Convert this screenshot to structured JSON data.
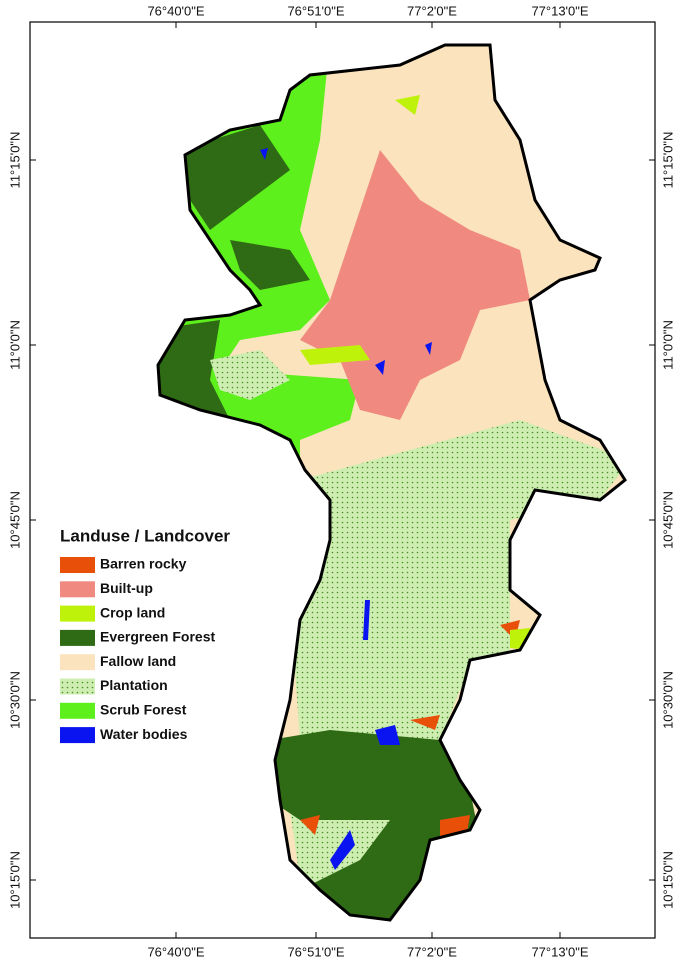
{
  "map": {
    "longitude_labels_top": [
      "76°40'0\"E",
      "76°51'0\"E",
      "77°2'0\"E",
      "77°13'0\"E"
    ],
    "longitude_labels_bottom": [
      "76°40'0\"E",
      "76°51'0\"E",
      "77°2'0\"E",
      "77°13'0\"E"
    ],
    "latitude_labels_left": [
      "11°15'0\"N",
      "11°0'0\"N",
      "10°45'0\"N",
      "10°30'0\"N",
      "10°15'0\"N"
    ],
    "latitude_labels_right": [
      "11°15'0\"N",
      "11°0'0\"N",
      "10°45'0\"N",
      "10°30'0\"N",
      "10°15'0\"N"
    ],
    "legend": {
      "title": "Landuse / Landcover",
      "items": [
        {
          "label": "Barren rocky",
          "color": "#e8500a"
        },
        {
          "label": "Built-up",
          "color": "#f08a80"
        },
        {
          "label": "Crop land",
          "color": "#bff20a"
        },
        {
          "label": "Evergreen Forest",
          "color": "#2e6b14"
        },
        {
          "label": "Fallow land",
          "color": "#fbe3bd"
        },
        {
          "label": "Plantation",
          "color": "#cdeeb0"
        },
        {
          "label": "Scrub Forest",
          "color": "#5ef01c"
        },
        {
          "label": "Water bodies",
          "color": "#0a14f0"
        }
      ]
    }
  }
}
